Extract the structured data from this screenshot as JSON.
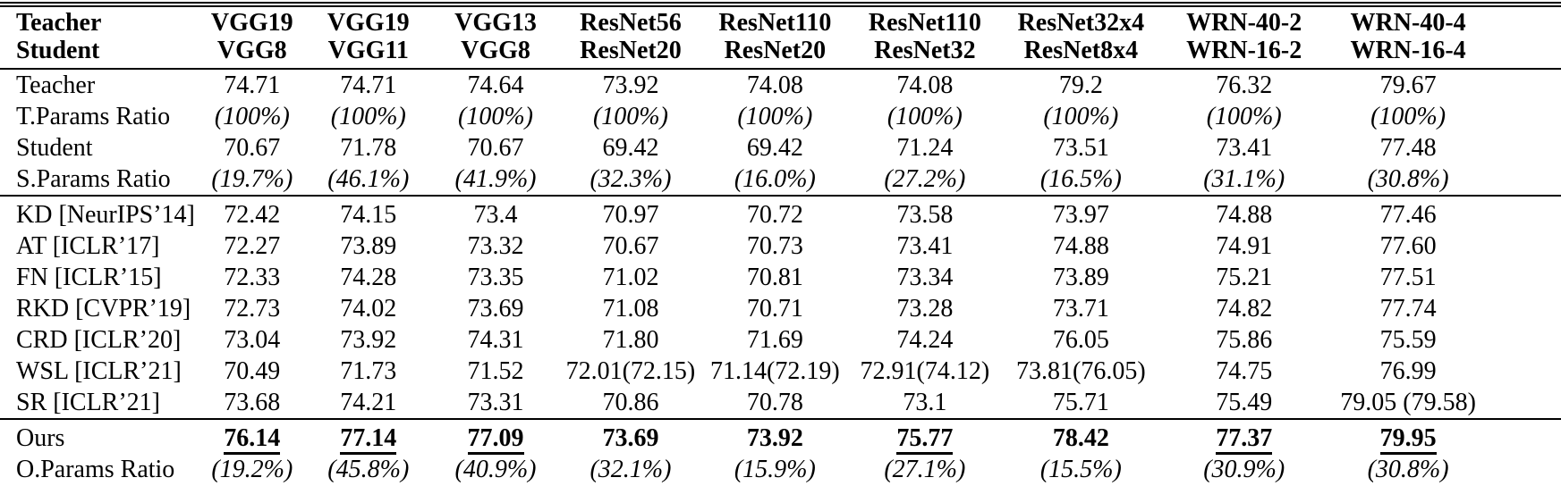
{
  "table": {
    "header": {
      "teacher_label": "Teacher",
      "student_label": "Student",
      "pairs": [
        {
          "teacher": "VGG19",
          "student": "VGG8"
        },
        {
          "teacher": "VGG19",
          "student": "VGG11"
        },
        {
          "teacher": "VGG13",
          "student": "VGG8"
        },
        {
          "teacher": "ResNet56",
          "student": "ResNet20"
        },
        {
          "teacher": "ResNet110",
          "student": "ResNet20"
        },
        {
          "teacher": "ResNet110",
          "student": "ResNet32"
        },
        {
          "teacher": "ResNet32x4",
          "student": "ResNet8x4"
        },
        {
          "teacher": "WRN-40-2",
          "student": "WRN-16-2"
        },
        {
          "teacher": "WRN-40-4",
          "student": "WRN-16-4"
        }
      ]
    },
    "rows": [
      {
        "label": "Teacher",
        "value_style": "normal",
        "section_start": false,
        "values": [
          "74.71",
          "74.71",
          "74.64",
          "73.92",
          "74.08",
          "74.08",
          "79.2",
          "76.32",
          "79.67"
        ]
      },
      {
        "label": "T.Params Ratio",
        "value_style": "italic",
        "section_start": false,
        "values": [
          "(100%)",
          "(100%)",
          "(100%)",
          "(100%)",
          "(100%)",
          "(100%)",
          "(100%)",
          "(100%)",
          "(100%)"
        ]
      },
      {
        "label": "Student",
        "value_style": "normal",
        "section_start": false,
        "values": [
          "70.67",
          "71.78",
          "70.67",
          "69.42",
          "69.42",
          "71.24",
          "73.51",
          "73.41",
          "77.48"
        ]
      },
      {
        "label": "S.Params Ratio",
        "value_style": "italic",
        "section_start": false,
        "values": [
          "(19.7%)",
          "(46.1%)",
          "(41.9%)",
          "(32.3%)",
          "(16.0%)",
          "(27.2%)",
          "(16.5%)",
          "(31.1%)",
          "(30.8%)"
        ]
      },
      {
        "label": "KD [NeurIPS’14]",
        "value_style": "normal",
        "section_start": true,
        "values": [
          "72.42",
          "74.15",
          "73.4",
          "70.97",
          "70.72",
          "73.58",
          "73.97",
          "74.88",
          "77.46"
        ]
      },
      {
        "label": "AT [ICLR’17]",
        "value_style": "normal",
        "section_start": false,
        "values": [
          "72.27",
          "73.89",
          "73.32",
          "70.67",
          "70.73",
          "73.41",
          "74.88",
          "74.91",
          "77.60"
        ]
      },
      {
        "label": "FN [ICLR’15]",
        "value_style": "normal",
        "section_start": false,
        "values": [
          "72.33",
          "74.28",
          "73.35",
          "71.02",
          "70.81",
          "73.34",
          "73.89",
          "75.21",
          "77.51"
        ]
      },
      {
        "label": "RKD [CVPR’19]",
        "value_style": "normal",
        "section_start": false,
        "values": [
          "72.73",
          "74.02",
          "73.69",
          "71.08",
          "70.71",
          "73.28",
          "73.71",
          "74.82",
          "77.74"
        ]
      },
      {
        "label": "CRD [ICLR’20]",
        "value_style": "normal",
        "section_start": false,
        "values": [
          "73.04",
          "73.92",
          "74.31",
          "71.80",
          "71.69",
          "74.24",
          "76.05",
          "75.86",
          "75.59"
        ]
      },
      {
        "label": "WSL [ICLR’21]",
        "value_style": "normal",
        "section_start": false,
        "values": [
          "70.49",
          "71.73",
          "71.52",
          "72.01(72.15)",
          "71.14(72.19)",
          "72.91(74.12)",
          "73.81(76.05)",
          "74.75",
          "76.99"
        ]
      },
      {
        "label": "SR [ICLR’21]",
        "value_style": "normal",
        "section_start": false,
        "values": [
          "73.68",
          "74.21",
          "73.31",
          "70.86",
          "70.78",
          "73.1",
          "75.71",
          "75.49",
          "79.05 (79.58)"
        ]
      },
      {
        "label": "Ours",
        "value_style": "bold",
        "section_start": true,
        "values": [
          "76.14",
          "77.14",
          "77.09",
          "73.69",
          "73.92",
          "75.77",
          "78.42",
          "77.37",
          "79.95"
        ],
        "underlined": [
          true,
          true,
          true,
          false,
          false,
          true,
          false,
          true,
          true
        ]
      },
      {
        "label": "O.Params Ratio",
        "value_style": "italic",
        "section_start": false,
        "values": [
          "(19.2%)",
          "(45.8%)",
          "(40.9%)",
          "(32.1%)",
          "(15.9%)",
          "(27.1%)",
          "(15.5%)",
          "(30.9%)",
          "(30.8%)"
        ]
      }
    ]
  }
}
